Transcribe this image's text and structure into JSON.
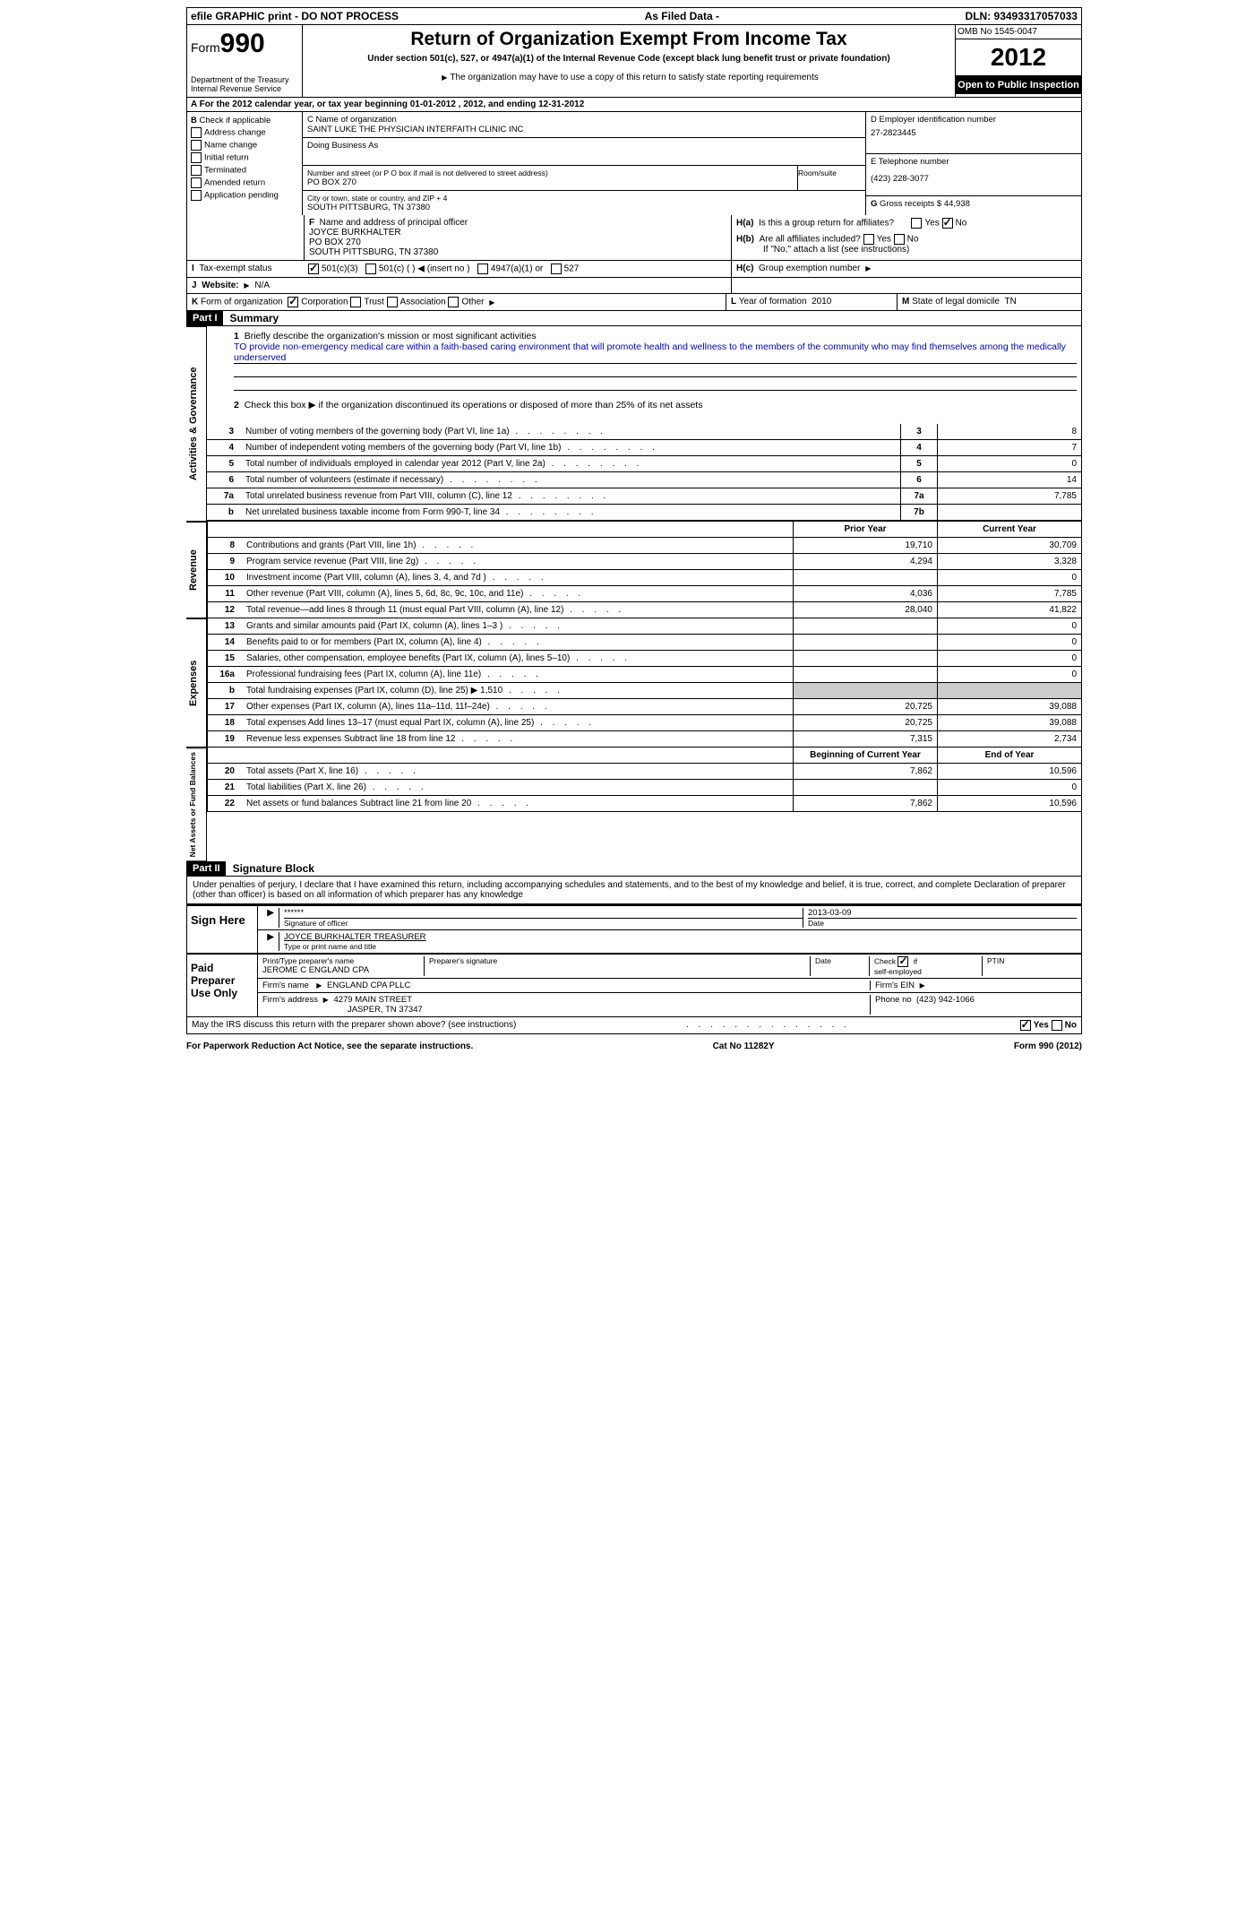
{
  "topbar": {
    "left": "efile GRAPHIC print - DO NOT PROCESS",
    "mid": "As Filed Data -",
    "right": "DLN: 93493317057033"
  },
  "header": {
    "form_label": "Form",
    "form_num": "990",
    "dept": "Department of the Treasury",
    "irs": "Internal Revenue Service",
    "title": "Return of Organization Exempt From Income Tax",
    "subtitle": "Under section 501(c), 527, or 4947(a)(1) of the Internal Revenue Code (except black lung benefit trust or private foundation)",
    "note": "The organization may have to use a copy of this return to satisfy state reporting requirements",
    "omb": "OMB No 1545-0047",
    "year": "2012",
    "open": "Open to Public Inspection"
  },
  "sectionA": "A For the 2012 calendar year, or tax year beginning 01-01-2012    , 2012, and ending 12-31-2012",
  "B": {
    "label": "B",
    "text": "Check if applicable",
    "items": [
      "Address change",
      "Name change",
      "Initial return",
      "Terminated",
      "Amended return",
      "Application pending"
    ]
  },
  "C": {
    "name_label": "C Name of organization",
    "name": "SAINT LUKE THE PHYSICIAN INTERFAITH CLINIC INC",
    "dba": "Doing Business As",
    "street_label": "Number and street (or P O  box if mail is not delivered to street address)",
    "room": "Room/suite",
    "street": "PO BOX 270",
    "city_label": "City or town, state or country, and ZIP + 4",
    "city": "SOUTH PITTSBURG, TN  37380"
  },
  "D": {
    "label": "D Employer identification number",
    "value": "27-2823445"
  },
  "E": {
    "label": "E Telephone number",
    "value": "(423) 228-3077"
  },
  "G": {
    "label": "G",
    "text": "Gross receipts $",
    "value": "44,938"
  },
  "F": {
    "label": "F",
    "text": "Name and address of principal officer",
    "name": "JOYCE BURKHALTER",
    "addr1": "PO BOX 270",
    "addr2": "SOUTH PITTSBURG, TN  37380"
  },
  "H": {
    "a": "H(a)",
    "a_text": "Is this a group return for affiliates?",
    "b": "H(b)",
    "b_text": "Are all affiliates included?",
    "b_note": "If \"No,\" attach a list  (see instructions)",
    "c": "H(c)",
    "c_text": "Group exemption number"
  },
  "I": {
    "label": "I",
    "text": "Tax-exempt status",
    "opts": [
      "501(c)(3)",
      "501(c) (  )",
      "(insert no )",
      "4947(a)(1) or",
      "527"
    ]
  },
  "J": {
    "label": "J",
    "text": "Website:",
    "value": "N/A"
  },
  "K": {
    "label": "K",
    "text": "Form of organization",
    "opts": [
      "Corporation",
      "Trust",
      "Association",
      "Other"
    ]
  },
  "L": {
    "label": "L",
    "text": "Year of formation",
    "value": "2010"
  },
  "M": {
    "label": "M",
    "text": "State of legal domicile",
    "value": "TN"
  },
  "part1": {
    "header": "Part I",
    "title": "Summary",
    "side_ag": "Activities & Governance",
    "side_rev": "Revenue",
    "side_exp": "Expenses",
    "side_net": "Net Assets or Fund Balances",
    "q1": "Briefly describe the organization's mission or most significant activities",
    "q1_text": "TO provide non-emergency medical care within a faith-based caring environment that will promote health and wellness to the members of the community who may find themselves among the medically underserved",
    "q2": "Check this box ▶    if the organization discontinued its operations or disposed of more than 25% of its net assets",
    "rows_ag": [
      {
        "n": "3",
        "d": "Number of voting members of the governing body (Part VI, line 1a)",
        "l": "3",
        "v": "8"
      },
      {
        "n": "4",
        "d": "Number of independent voting members of the governing body (Part VI, line 1b)",
        "l": "4",
        "v": "7"
      },
      {
        "n": "5",
        "d": "Total number of individuals employed in calendar year 2012 (Part V, line 2a)",
        "l": "5",
        "v": "0"
      },
      {
        "n": "6",
        "d": "Total number of volunteers (estimate if necessary)",
        "l": "6",
        "v": "14"
      },
      {
        "n": "7a",
        "d": "Total unrelated business revenue from Part VIII, column (C), line 12",
        "l": "7a",
        "v": "7,785"
      },
      {
        "n": "b",
        "d": "Net unrelated business taxable income from Form 990-T, line 34",
        "l": "7b",
        "v": ""
      }
    ],
    "col_prior": "Prior Year",
    "col_current": "Current Year",
    "rows_rev": [
      {
        "n": "8",
        "d": "Contributions and grants (Part VIII, line 1h)",
        "p": "19,710",
        "c": "30,709"
      },
      {
        "n": "9",
        "d": "Program service revenue (Part VIII, line 2g)",
        "p": "4,294",
        "c": "3,328"
      },
      {
        "n": "10",
        "d": "Investment income (Part VIII, column (A), lines 3, 4, and 7d )",
        "p": "",
        "c": "0"
      },
      {
        "n": "11",
        "d": "Other revenue (Part VIII, column (A), lines 5, 6d, 8c, 9c, 10c, and 11e)",
        "p": "4,036",
        "c": "7,785"
      },
      {
        "n": "12",
        "d": "Total revenue—add lines 8 through 11 (must equal Part VIII, column (A), line 12)",
        "p": "28,040",
        "c": "41,822"
      }
    ],
    "rows_exp": [
      {
        "n": "13",
        "d": "Grants and similar amounts paid (Part IX, column (A), lines 1–3 )",
        "p": "",
        "c": "0"
      },
      {
        "n": "14",
        "d": "Benefits paid to or for members (Part IX, column (A), line 4)",
        "p": "",
        "c": "0"
      },
      {
        "n": "15",
        "d": "Salaries, other compensation, employee benefits (Part IX, column (A), lines 5–10)",
        "p": "",
        "c": "0"
      },
      {
        "n": "16a",
        "d": "Professional fundraising fees (Part IX, column (A), line 11e)",
        "p": "",
        "c": "0"
      },
      {
        "n": "b",
        "d": "Total fundraising expenses (Part IX, column (D), line 25) ▶ 1,510",
        "p": "shade",
        "c": "shade"
      },
      {
        "n": "17",
        "d": "Other expenses (Part IX, column (A), lines 11a–11d, 11f–24e)",
        "p": "20,725",
        "c": "39,088"
      },
      {
        "n": "18",
        "d": "Total expenses  Add lines 13–17 (must equal Part IX, column (A), line 25)",
        "p": "20,725",
        "c": "39,088"
      },
      {
        "n": "19",
        "d": "Revenue less expenses  Subtract line 18 from line 12",
        "p": "7,315",
        "c": "2,734"
      }
    ],
    "col_begin": "Beginning of Current Year",
    "col_end": "End of Year",
    "rows_net": [
      {
        "n": "20",
        "d": "Total assets (Part X, line 16)",
        "p": "7,862",
        "c": "10,596"
      },
      {
        "n": "21",
        "d": "Total liabilities (Part X, line 26)",
        "p": "",
        "c": "0"
      },
      {
        "n": "22",
        "d": "Net assets or fund balances  Subtract line 21 from line 20",
        "p": "7,862",
        "c": "10,596"
      }
    ]
  },
  "part2": {
    "header": "Part II",
    "title": "Signature Block",
    "perjury": "Under penalties of perjury, I declare that I have examined this return, including accompanying schedules and statements, and to the best of my knowledge and belief, it is true, correct, and complete  Declaration of preparer (other than officer) is based on all information of which preparer has any knowledge",
    "sign_here": "Sign Here",
    "sig_stars": "******",
    "sig_label": "Signature of officer",
    "sig_date": "2013-03-09",
    "date_label": "Date",
    "sig_name": "JOYCE BURKHALTER TREASURER",
    "sig_name_label": "Type or print name and title",
    "paid": "Paid Preparer Use Only",
    "prep_name_label": "Print/Type preparer's name",
    "prep_name": "JEROME C ENGLAND CPA",
    "prep_sig_label": "Preparer's signature",
    "prep_date_label": "Date",
    "self_emp": "Check      if self-employed",
    "ptin": "PTIN",
    "firm_name_label": "Firm's name",
    "firm_name": "ENGLAND CPA PLLC",
    "firm_ein": "Firm's EIN",
    "firm_addr_label": "Firm's address",
    "firm_addr": "4279 MAIN STREET",
    "firm_addr2": "JASPER, TN  37347",
    "phone_label": "Phone no",
    "phone": "(423) 942-1066",
    "discuss": "May the IRS discuss this return with the preparer shown above? (see instructions)",
    "yes": "Yes",
    "no": "No"
  },
  "footer": {
    "left": "For Paperwork Reduction Act Notice, see the separate instructions.",
    "mid": "Cat No  11282Y",
    "right": "Form 990 (2012)"
  }
}
